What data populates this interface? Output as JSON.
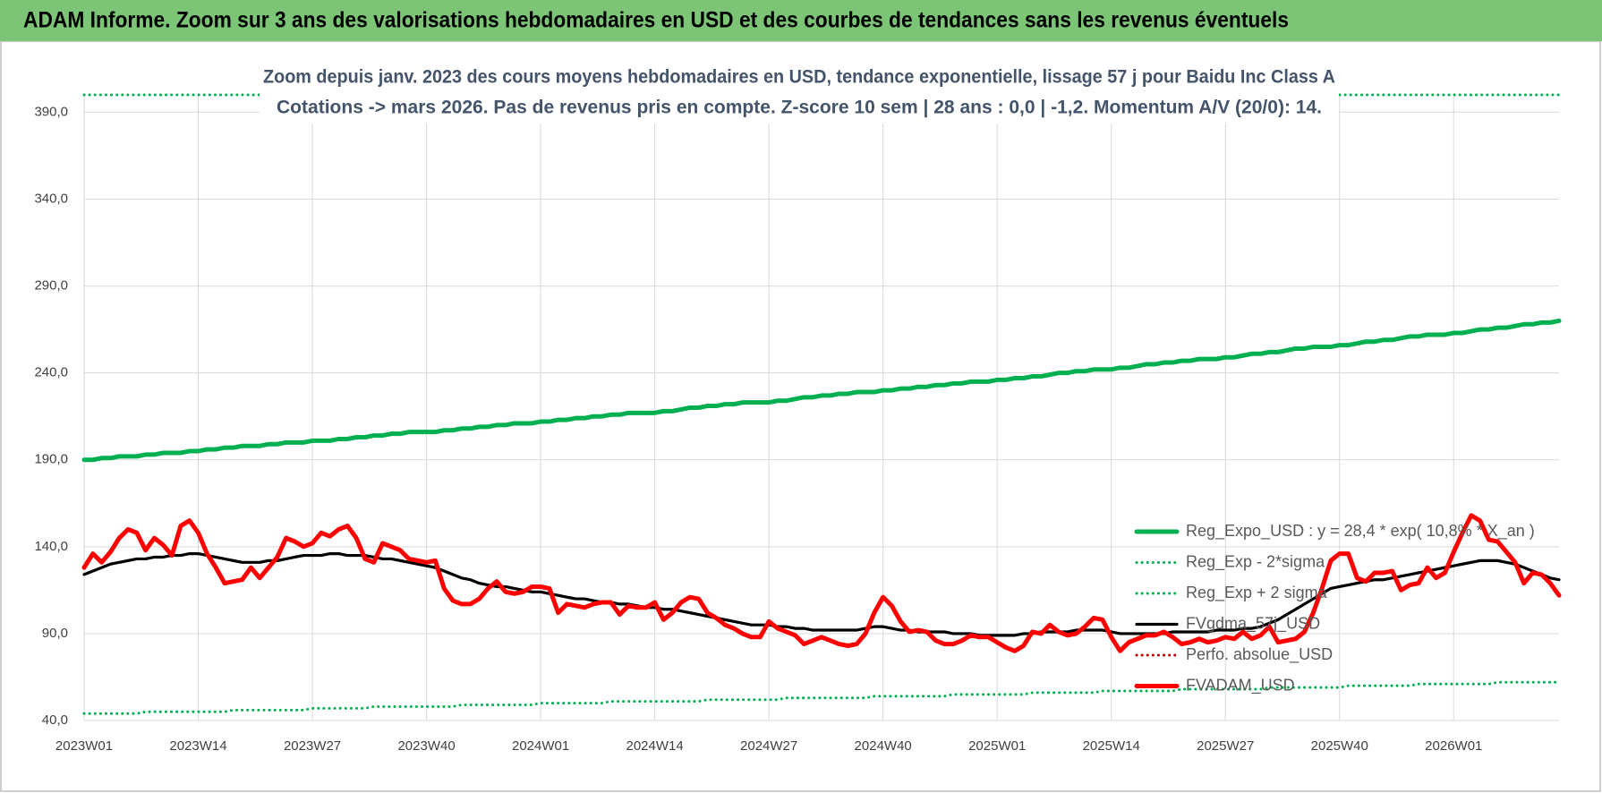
{
  "chart_data": {
    "type": "line",
    "title": "ADAM Informe. Zoom sur 3 ans des valorisations hebdomadaires en USD et des courbes de tendances sans les revenus éventuels",
    "subtitle": [
      "Zoom depuis janv. 2023 des cours moyens hebdomadaires en USD, tendance exponentielle, lissage 57 j pour Baidu Inc Class A",
      "Cotations -> mars 2026. Pas de revenus pris en compte. Z-score 10 sem | 28 ans : 0,0 | -1,2. Momentum A/V (20/0): 14."
    ],
    "categories": [
      "2023W01",
      null,
      null,
      null,
      null,
      null,
      null,
      null,
      null,
      null,
      null,
      null,
      null,
      "2023W14",
      null,
      null,
      null,
      null,
      null,
      null,
      null,
      null,
      null,
      null,
      null,
      null,
      "2023W27",
      null,
      null,
      null,
      null,
      null,
      null,
      null,
      null,
      null,
      null,
      null,
      null,
      "2023W40",
      null,
      null,
      null,
      null,
      null,
      null,
      null,
      null,
      null,
      null,
      null,
      null,
      "2024W01",
      null,
      null,
      null,
      null,
      null,
      null,
      null,
      null,
      null,
      null,
      null,
      null,
      "2024W14",
      null,
      null,
      null,
      null,
      null,
      null,
      null,
      null,
      null,
      null,
      null,
      null,
      "2024W27",
      null,
      null,
      null,
      null,
      null,
      null,
      null,
      null,
      null,
      null,
      null,
      null,
      "2024W40",
      null,
      null,
      null,
      null,
      null,
      null,
      null,
      null,
      null,
      null,
      null,
      null,
      "2025W01",
      null,
      null,
      null,
      null,
      null,
      null,
      null,
      null,
      null,
      null,
      null,
      null,
      "2025W14",
      null,
      null,
      null,
      null,
      null,
      null,
      null,
      null,
      null,
      null,
      null,
      null,
      "2025W27",
      null,
      null,
      null,
      null,
      null,
      null,
      null,
      null,
      null,
      null,
      null,
      null,
      "2025W40",
      null,
      null,
      null,
      null,
      null,
      null,
      null,
      null,
      null,
      null,
      null,
      null,
      "2026W01",
      null,
      null,
      null,
      null,
      null,
      null,
      null,
      null,
      null,
      null,
      null,
      null
    ],
    "series": [
      {
        "name": "Reg_Expo_USD : y = 28,4 * exp( 10,8% * X_an )",
        "color": "#00b050",
        "line_style": "thick",
        "values": [
          190,
          190,
          191,
          191,
          192,
          192,
          192,
          193,
          193,
          194,
          194,
          194,
          195,
          195,
          196,
          196,
          197,
          197,
          198,
          198,
          198,
          199,
          199,
          200,
          200,
          200,
          201,
          201,
          201,
          202,
          202,
          203,
          203,
          204,
          204,
          205,
          205,
          206,
          206,
          206,
          206,
          207,
          207,
          208,
          208,
          209,
          209,
          210,
          210,
          211,
          211,
          211,
          212,
          212,
          213,
          213,
          214,
          214,
          215,
          215,
          216,
          216,
          217,
          217,
          217,
          217,
          218,
          218,
          219,
          220,
          220,
          221,
          221,
          222,
          222,
          223,
          223,
          223,
          223,
          224,
          224,
          225,
          226,
          226,
          227,
          227,
          228,
          228,
          229,
          229,
          229,
          230,
          230,
          231,
          231,
          232,
          232,
          233,
          233,
          234,
          234,
          235,
          235,
          235,
          236,
          236,
          237,
          237,
          238,
          238,
          239,
          240,
          240,
          241,
          241,
          242,
          242,
          242,
          243,
          243,
          244,
          245,
          245,
          246,
          246,
          247,
          247,
          248,
          248,
          248,
          249,
          249,
          250,
          251,
          251,
          252,
          252,
          253,
          254,
          254,
          255,
          255,
          255,
          256,
          256,
          257,
          258,
          258,
          259,
          259,
          260,
          261,
          261,
          262,
          262,
          262,
          263,
          263,
          264,
          265,
          265,
          266,
          266,
          267,
          268,
          268,
          269,
          269,
          270
        ]
      },
      {
        "name": "Reg_Exp - 2*sigma",
        "color": "#00b050",
        "line_style": "dotted",
        "values": [
          44,
          44,
          44,
          44,
          44,
          44,
          44,
          45,
          45,
          45,
          45,
          45,
          45,
          45,
          45,
          45,
          45,
          46,
          46,
          46,
          46,
          46,
          46,
          46,
          46,
          46,
          47,
          47,
          47,
          47,
          47,
          47,
          47,
          48,
          48,
          48,
          48,
          48,
          48,
          48,
          48,
          48,
          48,
          49,
          49,
          49,
          49,
          49,
          49,
          49,
          49,
          49,
          50,
          50,
          50,
          50,
          50,
          50,
          50,
          50,
          51,
          51,
          51,
          51,
          51,
          51,
          51,
          51,
          51,
          51,
          51,
          52,
          52,
          52,
          52,
          52,
          52,
          52,
          52,
          52,
          53,
          53,
          53,
          53,
          53,
          53,
          53,
          53,
          53,
          53,
          54,
          54,
          54,
          54,
          54,
          54,
          54,
          54,
          54,
          55,
          55,
          55,
          55,
          55,
          55,
          55,
          55,
          55,
          56,
          56,
          56,
          56,
          56,
          56,
          56,
          56,
          57,
          57,
          57,
          57,
          57,
          57,
          57,
          57,
          57,
          58,
          58,
          58,
          58,
          58,
          58,
          58,
          58,
          58,
          58,
          59,
          59,
          59,
          59,
          59,
          59,
          59,
          59,
          59,
          60,
          60,
          60,
          60,
          60,
          60,
          60,
          60,
          61,
          61,
          61,
          61,
          61,
          61,
          61,
          61,
          61,
          62,
          62,
          62,
          62,
          62,
          62,
          62,
          62
        ]
      },
      {
        "name": "Reg_Exp + 2 sigma",
        "color": "#00b050",
        "line_style": "dotted",
        "values": [
          400,
          400,
          400,
          400,
          400,
          400,
          400,
          400,
          400,
          400,
          400,
          400,
          400,
          400,
          400,
          400,
          400,
          400,
          400,
          400,
          400,
          400,
          400,
          400,
          400,
          400,
          400,
          400,
          400,
          400,
          400,
          400,
          400,
          400,
          400,
          400,
          400,
          400,
          400,
          400,
          400,
          400,
          400,
          400,
          400,
          400,
          400,
          400,
          400,
          400,
          400,
          400,
          400,
          400,
          400,
          400,
          400,
          400,
          400,
          400,
          400,
          400,
          400,
          400,
          400,
          400,
          400,
          400,
          400,
          400,
          400,
          400,
          400,
          400,
          400,
          400,
          400,
          400,
          400,
          400,
          400,
          400,
          400,
          400,
          400,
          400,
          400,
          400,
          400,
          400,
          400,
          400,
          400,
          400,
          400,
          400,
          400,
          400,
          400,
          400,
          400,
          400,
          400,
          400,
          400,
          400,
          400,
          400,
          400,
          400,
          400,
          400,
          400,
          400,
          400,
          400,
          400,
          400,
          400,
          400,
          400,
          400,
          400,
          400,
          400,
          400,
          400,
          400,
          400,
          400,
          400,
          400,
          400,
          400,
          400,
          400,
          400,
          400,
          400,
          400,
          400,
          400,
          400,
          400,
          400,
          400,
          400,
          400,
          400,
          400,
          400,
          400,
          400,
          400,
          400,
          400,
          400,
          400,
          400,
          400,
          400,
          400,
          400,
          400,
          400,
          400,
          400,
          400,
          400
        ]
      },
      {
        "name": "FVgdma_57j_USD",
        "color": "#000000",
        "line_style": "medium",
        "values": [
          124,
          126,
          128,
          130,
          131,
          132,
          133,
          133,
          134,
          134,
          135,
          135,
          136,
          136,
          135,
          134,
          133,
          132,
          131,
          131,
          131,
          132,
          132,
          133,
          134,
          135,
          135,
          135,
          136,
          136,
          135,
          135,
          135,
          134,
          133,
          133,
          132,
          131,
          130,
          129,
          128,
          126,
          124,
          122,
          121,
          119,
          118,
          117,
          117,
          116,
          115,
          114,
          114,
          113,
          112,
          111,
          110,
          110,
          109,
          108,
          108,
          107,
          107,
          106,
          105,
          105,
          104,
          104,
          103,
          102,
          101,
          100,
          99,
          98,
          97,
          96,
          95,
          95,
          95,
          94,
          94,
          93,
          93,
          92,
          92,
          92,
          92,
          92,
          92,
          93,
          94,
          94,
          93,
          92,
          92,
          91,
          91,
          91,
          91,
          90,
          90,
          90,
          89,
          89,
          89,
          89,
          89,
          90,
          90,
          91,
          91,
          91,
          91,
          92,
          92,
          92,
          92,
          91,
          90,
          90,
          90,
          90,
          90,
          90,
          91,
          91,
          91,
          91,
          91,
          92,
          92,
          92,
          93,
          93,
          94,
          96,
          98,
          101,
          104,
          107,
          110,
          113,
          116,
          117,
          118,
          119,
          120,
          121,
          121,
          122,
          123,
          124,
          125,
          126,
          127,
          128,
          129,
          130,
          131,
          132,
          132,
          132,
          131,
          130,
          128,
          126,
          124,
          122,
          121
        ]
      },
      {
        "name": "Perfo. absolue_USD",
        "color": "#c00000",
        "line_style": "dotted",
        "values": [
          null,
          null,
          null,
          null,
          null,
          null,
          null,
          null,
          null,
          null,
          null,
          null,
          null,
          null,
          null,
          null,
          null,
          null,
          null,
          null,
          null,
          null,
          null,
          null,
          null,
          null,
          null,
          null,
          null,
          null,
          null,
          null,
          null,
          null,
          null,
          null,
          null,
          null,
          null,
          null,
          null,
          null,
          null,
          null,
          null,
          null,
          null,
          null,
          null,
          null,
          null,
          null,
          null,
          null,
          null,
          null,
          null,
          null,
          null,
          null,
          null,
          null,
          null,
          null,
          null,
          null,
          null,
          null,
          null,
          null,
          null,
          null,
          null,
          null,
          null,
          null,
          null,
          null,
          null,
          null,
          null,
          null,
          null,
          null,
          null,
          null,
          null,
          null,
          null,
          null,
          null,
          null,
          null,
          null,
          null,
          null,
          null,
          null,
          null,
          null,
          null,
          null,
          null,
          null,
          null,
          null,
          null,
          null,
          null,
          null,
          null,
          null,
          null,
          null,
          null,
          null,
          null,
          null,
          null,
          null,
          null,
          null,
          null,
          null,
          null,
          null,
          null,
          null,
          null,
          null,
          null,
          null,
          null,
          null,
          null,
          null,
          null,
          null,
          null,
          null,
          null,
          null,
          null,
          null,
          null,
          null,
          null,
          null,
          null,
          null,
          null,
          null,
          null,
          null,
          null,
          null,
          null,
          null,
          null,
          null,
          null,
          null,
          null,
          null,
          null,
          null,
          null,
          null,
          null
        ]
      },
      {
        "name": "FVADAM_USD",
        "color": "#ff0000",
        "line_style": "thick",
        "values": [
          128,
          136,
          131,
          137,
          145,
          150,
          148,
          138,
          145,
          141,
          135,
          152,
          155,
          148,
          136,
          128,
          119,
          120,
          121,
          128,
          122,
          128,
          134,
          145,
          143,
          140,
          142,
          148,
          146,
          150,
          152,
          145,
          133,
          131,
          142,
          140,
          138,
          133,
          132,
          131,
          132,
          116,
          109,
          107,
          107,
          110,
          116,
          120,
          114,
          113,
          114,
          117,
          117,
          116,
          102,
          107,
          106,
          105,
          107,
          108,
          108,
          101,
          106,
          105,
          105,
          108,
          98,
          102,
          108,
          111,
          110,
          102,
          99,
          95,
          93,
          90,
          88,
          88,
          97,
          93,
          91,
          89,
          84,
          86,
          88,
          86,
          84,
          83,
          84,
          90,
          102,
          111,
          106,
          97,
          91,
          92,
          91,
          86,
          84,
          84,
          86,
          89,
          88,
          88,
          85,
          82,
          80,
          83,
          91,
          90,
          95,
          91,
          89,
          90,
          94,
          99,
          98,
          88,
          80,
          85,
          87,
          89,
          89,
          91,
          88,
          84,
          85,
          87,
          85,
          86,
          88,
          87,
          91,
          87,
          89,
          94,
          85,
          86,
          87,
          91,
          102,
          116,
          132,
          136,
          136,
          122,
          120,
          125,
          125,
          126,
          115,
          118,
          119,
          128,
          122,
          125,
          137,
          148,
          158,
          155,
          144,
          143,
          137,
          131,
          119,
          125,
          124,
          119,
          112
        ]
      }
    ],
    "ylim": [
      40,
      400
    ],
    "yticks": [
      {
        "value": 40,
        "label": "40,0"
      },
      {
        "value": 90,
        "label": "90,0"
      },
      {
        "value": 140,
        "label": "140,0"
      },
      {
        "value": 190,
        "label": "190,0"
      },
      {
        "value": 240,
        "label": "240,0"
      },
      {
        "value": 290,
        "label": "290,0"
      },
      {
        "value": 340,
        "label": "340,0"
      },
      {
        "value": 390,
        "label": "390,0"
      }
    ],
    "grid": true,
    "legend": "right"
  }
}
